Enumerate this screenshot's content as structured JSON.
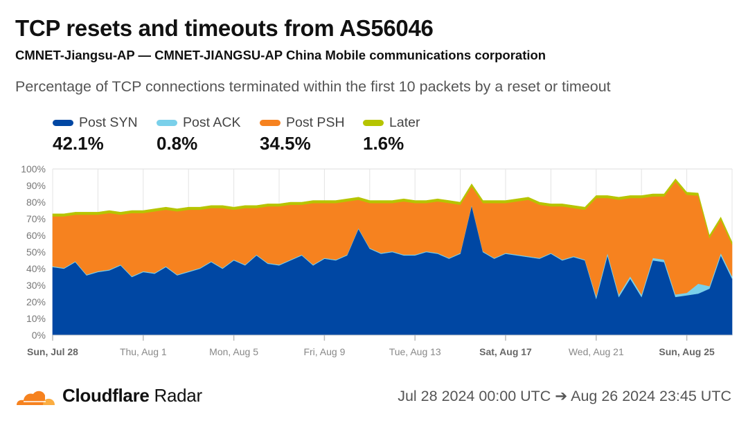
{
  "header": {
    "title": "TCP resets and timeouts from AS56046",
    "subtitle": "CMNET-Jiangsu-AP — CMNET-JIANGSU-AP China Mobile communications corporation",
    "description": "Percentage of TCP connections terminated within the first 10 packets by a reset or timeout"
  },
  "legend": [
    {
      "label": "Post SYN",
      "value": "42.1%",
      "color": "#0047a3"
    },
    {
      "label": "Post ACK",
      "value": "0.8%",
      "color": "#7ad0ea"
    },
    {
      "label": "Post PSH",
      "value": "34.5%",
      "color": "#f6821f"
    },
    {
      "label": "Later",
      "value": "1.6%",
      "color": "#b6c400"
    }
  ],
  "chart_data": {
    "type": "area",
    "stacked": true,
    "ylim": [
      0,
      100
    ],
    "y_ticks": [
      "0%",
      "10%",
      "20%",
      "30%",
      "40%",
      "50%",
      "60%",
      "70%",
      "80%",
      "90%",
      "100%"
    ],
    "x_ticks": [
      {
        "day": 0,
        "label": "Sun, Jul 28",
        "bold": true
      },
      {
        "day": 4,
        "label": "Thu, Aug 1",
        "bold": false
      },
      {
        "day": 8,
        "label": "Mon, Aug 5",
        "bold": false
      },
      {
        "day": 12,
        "label": "Fri, Aug 9",
        "bold": false
      },
      {
        "day": 16,
        "label": "Tue, Aug 13",
        "bold": false
      },
      {
        "day": 20,
        "label": "Sat, Aug 17",
        "bold": true
      },
      {
        "day": 24,
        "label": "Wed, Aug 21",
        "bold": false
      },
      {
        "day": 28,
        "label": "Sun, Aug 25",
        "bold": true
      }
    ],
    "x_days_since_jul_28": [
      0,
      0.5,
      1,
      1.5,
      2,
      2.5,
      3,
      3.5,
      4,
      4.5,
      5,
      5.5,
      6,
      6.5,
      7,
      7.5,
      8,
      8.5,
      9,
      9.5,
      10,
      10.5,
      11,
      11.5,
      12,
      12.5,
      13,
      13.5,
      14,
      14.5,
      15,
      15.5,
      16,
      16.5,
      17,
      17.5,
      18,
      18.5,
      19,
      19.5,
      20,
      20.5,
      21,
      21.5,
      22,
      22.5,
      23,
      23.5,
      24,
      24.5,
      25,
      25.5,
      26,
      26.5,
      27,
      27.5,
      28,
      28.5,
      29,
      29.5,
      30
    ],
    "grid": true,
    "series": [
      {
        "name": "Post SYN",
        "color": "#0047a3",
        "values": [
          41,
          40,
          44,
          36,
          38,
          39,
          42,
          35,
          38,
          37,
          41,
          36,
          38,
          40,
          44,
          40,
          45,
          42,
          48,
          43,
          42,
          45,
          48,
          42,
          46,
          45,
          48,
          64,
          52,
          49,
          50,
          48,
          48,
          50,
          49,
          46,
          49,
          78,
          50,
          46,
          49,
          48,
          47,
          46,
          49,
          45,
          47,
          45,
          22,
          48,
          23,
          34,
          23,
          45,
          44,
          23,
          24,
          25,
          28,
          48,
          34
        ]
      },
      {
        "name": "Post ACK",
        "color": "#7ad0ea",
        "values": [
          0.5,
          0.5,
          0.5,
          0.5,
          0.5,
          0.5,
          0.5,
          0.5,
          0.5,
          0.5,
          0.5,
          0.5,
          0.5,
          0.5,
          0.5,
          0.5,
          0.5,
          0.5,
          0.5,
          0.5,
          0.5,
          0.5,
          0.5,
          0.5,
          0.5,
          0.5,
          0.5,
          0.5,
          0.5,
          0.5,
          0.5,
          0.5,
          0.5,
          0.5,
          0.5,
          0.5,
          0.5,
          0.5,
          0.5,
          0.5,
          0.5,
          0.5,
          0.5,
          0.5,
          0.5,
          0.5,
          0.5,
          0.5,
          1.5,
          1.5,
          1.5,
          1.5,
          1.5,
          1.5,
          1.5,
          1.5,
          1.5,
          6,
          1.5,
          1.5,
          1.5
        ]
      },
      {
        "name": "Post PSH",
        "color": "#f6821f",
        "values": [
          30,
          31,
          28,
          36,
          34,
          34,
          30,
          38,
          35,
          37,
          34,
          38,
          37,
          35,
          32,
          36,
          30,
          34,
          28,
          34,
          35,
          33,
          30,
          37,
          33,
          34,
          32,
          17,
          27,
          30,
          29,
          32,
          31,
          29,
          31,
          33,
          29,
          11,
          29,
          33,
          30,
          32,
          34,
          32,
          28,
          32,
          29,
          30,
          59,
          33,
          57,
          47,
          58,
          37,
          38,
          68,
          59,
          53,
          29,
          20,
          19
        ]
      },
      {
        "name": "Later",
        "color": "#b6c400",
        "values": [
          1.5,
          1.5,
          1.5,
          1.5,
          1.5,
          1.5,
          1.5,
          1.5,
          1.5,
          1.5,
          1.5,
          1.5,
          1.5,
          1.5,
          1.5,
          1.5,
          1.5,
          1.5,
          1.5,
          1.5,
          1.5,
          1.5,
          1.5,
          1.5,
          1.5,
          1.5,
          1.5,
          1.5,
          1.5,
          1.5,
          1.5,
          1.5,
          1.5,
          1.5,
          1.5,
          1.5,
          1.5,
          1.5,
          1.5,
          1.5,
          1.5,
          1.5,
          1.5,
          1.5,
          1.5,
          1.5,
          1.5,
          1.5,
          1.5,
          1.5,
          1.5,
          1.5,
          1.5,
          1.5,
          1.5,
          1.5,
          1.5,
          1.5,
          1.5,
          1.5,
          1.5
        ]
      }
    ]
  },
  "footer": {
    "brand_bold": "Cloudflare",
    "brand_light": "Radar",
    "range": "Jul 28 2024 00:00 UTC ➔ Aug 26 2024 23:45 UTC"
  }
}
